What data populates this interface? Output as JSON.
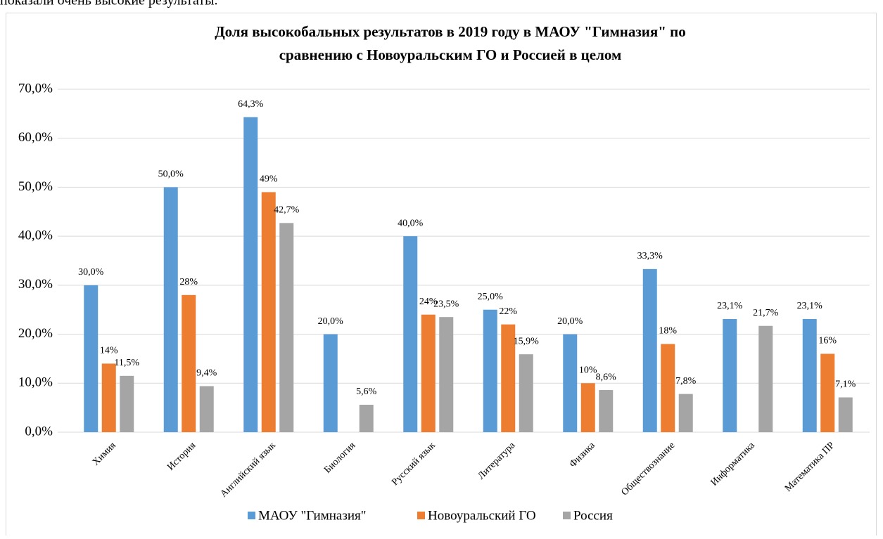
{
  "page_text": "показали очень высокие результаты.",
  "chart_data": {
    "type": "bar",
    "title": [
      "Доля высокобальных результатов в 2019 году в МАОУ \"Гимназия\" по",
      "сравнению с Новоуральским ГО и Россией в целом"
    ],
    "categories": [
      "Химия",
      "История",
      "Английский язык",
      "Биология",
      "Русский язык",
      "Литература",
      "Физика",
      "Обществознание",
      "Информатика",
      "Математика ПР"
    ],
    "series": [
      {
        "name": "МАОУ \"Гимназия\"",
        "color": "#5b9bd5",
        "values": [
          30.0,
          50.0,
          64.3,
          20.0,
          40.0,
          25.0,
          20.0,
          33.3,
          23.1,
          23.1
        ],
        "value_labels": [
          "30,0%",
          "50,0%",
          "64,3%",
          "20,0%",
          "40,0%",
          "25,0%",
          "20,0%",
          "33,3%",
          "23,1%",
          "23,1%"
        ]
      },
      {
        "name": "Новоуральский ГО",
        "color": "#ed7d31",
        "values": [
          14,
          28,
          49,
          null,
          24,
          22,
          10,
          18,
          null,
          16
        ],
        "value_labels": [
          "14%",
          "28%",
          "49%",
          null,
          "24%",
          "22%",
          "10%",
          "18%",
          null,
          "16%"
        ]
      },
      {
        "name": "Россия",
        "color": "#a5a5a5",
        "values": [
          11.5,
          9.4,
          42.7,
          5.6,
          23.5,
          15.9,
          8.6,
          7.8,
          21.7,
          7.1
        ],
        "value_labels": [
          "11,5%",
          "9,4%",
          "42,7%",
          "5,6%",
          "23,5%",
          "15,9%",
          "8,6%",
          "7,8%",
          "21,7%",
          "7,1%"
        ]
      }
    ],
    "ylim": [
      0,
      70
    ],
    "yticks": [
      {
        "value": 0,
        "label": "0,0%"
      },
      {
        "value": 10,
        "label": "10,0%"
      },
      {
        "value": 20,
        "label": "20,0%"
      },
      {
        "value": 30,
        "label": "30,0%"
      },
      {
        "value": 40,
        "label": "40,0%"
      },
      {
        "value": 50,
        "label": "50,0%"
      },
      {
        "value": 60,
        "label": "60,0%"
      },
      {
        "value": 70,
        "label": "70,0%"
      }
    ],
    "grid": true,
    "legend": "bottom"
  }
}
